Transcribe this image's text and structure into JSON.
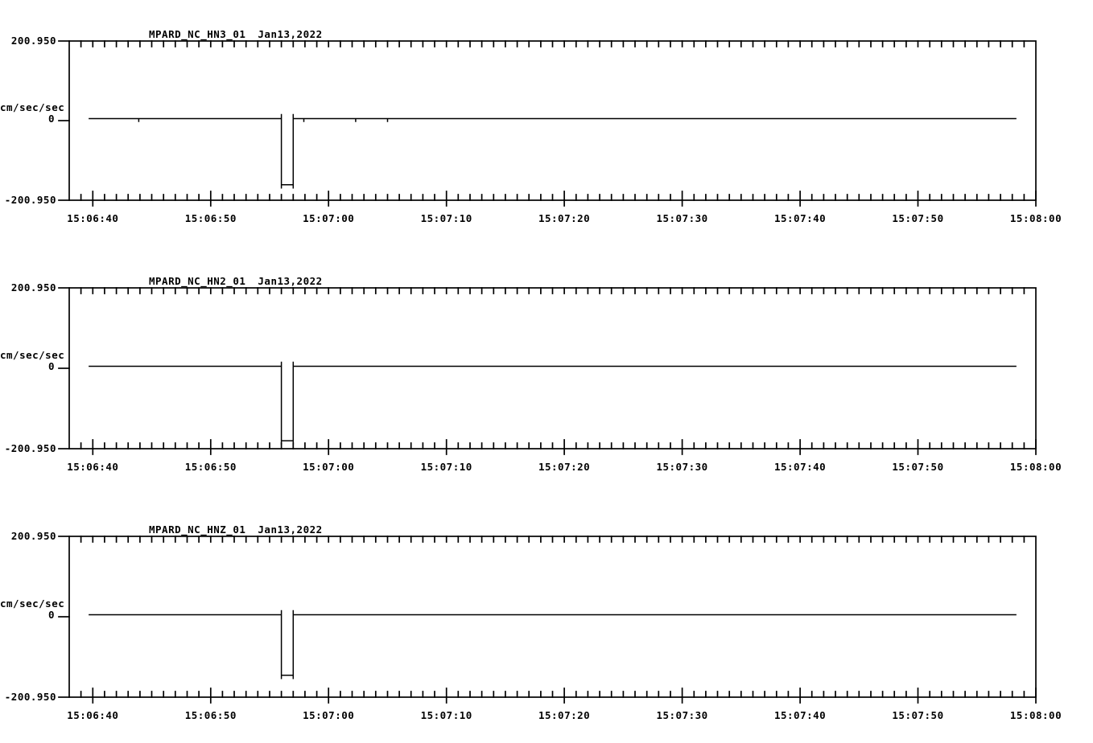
{
  "page": {
    "background_color": "#ffffff",
    "line_color": "#000000"
  },
  "chart_data": {
    "type": "line",
    "kind": "seismic-waveform-strip-chart",
    "panels": [
      {
        "station": "MPARD_NC_HN3_01",
        "date": "Jan13,2022",
        "baseline_value": 0,
        "pulse": {
          "start_time": "15:06:56",
          "end_time": "15:06:57",
          "amplitude": -162
        },
        "noise_blip_offsets_s": [
          5.9,
          19.9,
          24.3,
          27.0
        ]
      },
      {
        "station": "MPARD_NC_HN2_01",
        "date": "Jan13,2022",
        "baseline_value": 0,
        "pulse": {
          "start_time": "15:06:56",
          "end_time": "15:06:57",
          "amplitude": -181
        },
        "noise_blip_offsets_s": []
      },
      {
        "station": "MPARD_NC_HNZ_01",
        "date": "Jan13,2022",
        "baseline_value": 0,
        "pulse": {
          "start_time": "15:06:56",
          "end_time": "15:06:57",
          "amplitude": -146
        },
        "noise_blip_offsets_s": []
      }
    ],
    "y_axis": {
      "unit_label": "cm/sec/sec",
      "top_tick_label": "200.950",
      "zero_tick_label": "0",
      "bottom_tick_label": "-200.950",
      "ylim": [
        -200.95,
        200.95
      ]
    },
    "x_axis": {
      "start_time": "15:06:38",
      "end_time": "15:08:00",
      "minor_tick_interval_s": 1,
      "major_tick_interval_s": 10,
      "tick_labels": [
        "15:06:40",
        "15:06:50",
        "15:07:00",
        "15:07:10",
        "15:07:20",
        "15:07:30",
        "15:07:40",
        "15:07:50",
        "15:08:00"
      ]
    }
  }
}
